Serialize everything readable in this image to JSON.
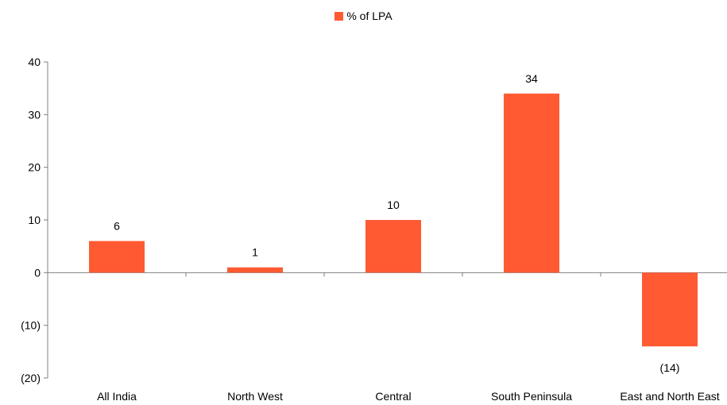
{
  "chart_data": {
    "type": "bar",
    "categories": [
      "All India",
      "North West",
      "Central",
      "South Peninsula",
      "East and North East"
    ],
    "series": [
      {
        "name": "% of LPA",
        "values": [
          6,
          1,
          10,
          34,
          -14
        ]
      }
    ],
    "data_labels": [
      "6",
      "1",
      "10",
      "34",
      "(14)"
    ],
    "y_ticks": [
      40,
      30,
      20,
      10,
      0,
      -10,
      -20
    ],
    "y_tick_labels": [
      "40",
      "30",
      "20",
      "10",
      "0",
      "(10)",
      "(20)"
    ],
    "ylim": [
      -20,
      40
    ],
    "grid": false,
    "legend_position": "top-center",
    "bar_color": "#FF5A32"
  }
}
